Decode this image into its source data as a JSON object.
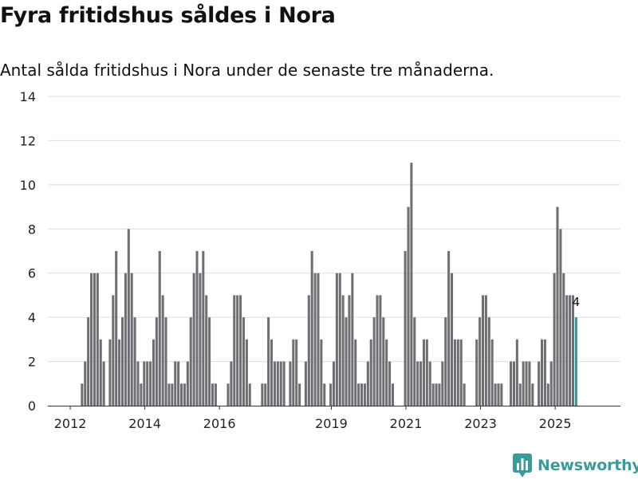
{
  "title": "Fyra fritidshus såldes i Nora",
  "subtitle": "Antal sålda fritidshus i Nora under de senaste tre månaderna.",
  "brand": {
    "name": "Newsworthy",
    "color": "#3a9c9a",
    "icon": "bar-chart-logo-icon"
  },
  "colors": {
    "bar": "#6f6e73",
    "highlight": "#2b9a96",
    "grid": "#dddddd",
    "axis": "#333333"
  },
  "chart_data": {
    "type": "bar",
    "title": "Fyra fritidshus såldes i Nora",
    "xlabel": "",
    "ylabel": "",
    "ylim": [
      0,
      14
    ],
    "yticks": [
      0,
      2,
      4,
      6,
      8,
      10,
      12,
      14
    ],
    "xlim": [
      2011.4,
      2026.75
    ],
    "xticks": [
      {
        "label": "2012",
        "value": 2012
      },
      {
        "label": "2014",
        "value": 2014
      },
      {
        "label": "2016",
        "value": 2016
      },
      {
        "label": "2019",
        "value": 2019
      },
      {
        "label": "2021",
        "value": 2021
      },
      {
        "label": "2023",
        "value": 2023
      },
      {
        "label": "2025",
        "value": 2025
      }
    ],
    "series_start": 2011.4,
    "series_step": 0.0833,
    "values": [
      0,
      0,
      0,
      0,
      0,
      0,
      0,
      0,
      0,
      0,
      0,
      1,
      2,
      4,
      6,
      6,
      6,
      3,
      2,
      0,
      3,
      5,
      7,
      3,
      4,
      6,
      8,
      6,
      4,
      2,
      1,
      2,
      2,
      2,
      3,
      4,
      7,
      5,
      4,
      1,
      1,
      2,
      2,
      1,
      1,
      2,
      4,
      6,
      7,
      6,
      7,
      5,
      4,
      1,
      1,
      0,
      0,
      0,
      1,
      2,
      5,
      5,
      5,
      4,
      3,
      1,
      0,
      0,
      0,
      1,
      1,
      4,
      3,
      2,
      2,
      2,
      2,
      0,
      2,
      3,
      3,
      1,
      0,
      2,
      5,
      7,
      6,
      6,
      3,
      1,
      0,
      1,
      2,
      6,
      6,
      5,
      4,
      5,
      6,
      3,
      1,
      1,
      1,
      2,
      3,
      4,
      5,
      5,
      4,
      3,
      2,
      1,
      0,
      0,
      0,
      7,
      9,
      11,
      4,
      2,
      2,
      3,
      3,
      2,
      1,
      1,
      1,
      2,
      4,
      7,
      6,
      3,
      3,
      3,
      1,
      0,
      0,
      0,
      3,
      4,
      5,
      5,
      4,
      3,
      1,
      1,
      1,
      0,
      0,
      2,
      2,
      3,
      1,
      2,
      2,
      2,
      1,
      0,
      2,
      3,
      3,
      1,
      2,
      6,
      9,
      8,
      6,
      5,
      5,
      5,
      4
    ],
    "highlight_last": true,
    "last_label": "4"
  }
}
